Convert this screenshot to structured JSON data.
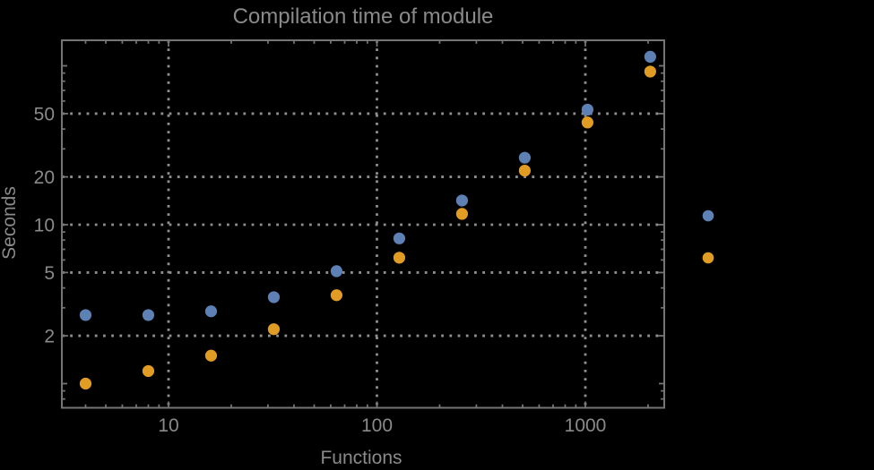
{
  "chart_data": {
    "type": "scatter",
    "title": "Compilation time of module",
    "xlabel": "Functions",
    "ylabel": "Seconds",
    "x_scale": "log",
    "y_scale": "log",
    "x_tick_labels": [
      "10",
      "100",
      "1000"
    ],
    "x_tick_values": [
      10,
      100,
      1000
    ],
    "y_tick_labels": [
      "2",
      "5",
      "10",
      "20",
      "50"
    ],
    "y_tick_values": [
      2,
      5,
      10,
      20,
      50
    ],
    "x_range": [
      3,
      2400
    ],
    "y_range": [
      0.7,
      146
    ],
    "grid": "dotted lines at labeled ticks only",
    "legend_position": "right-middle-markers-only",
    "x": [
      4,
      8,
      16,
      32,
      64,
      128,
      256,
      512,
      1024,
      2048
    ],
    "series": [
      {
        "name": "series-blue",
        "color": "#5E81B5",
        "label": "",
        "values": [
          2.7,
          2.7,
          2.85,
          3.5,
          5.1,
          8.2,
          14.2,
          26.4,
          53,
          114
        ]
      },
      {
        "name": "series-orange",
        "color": "#E19C24",
        "label": "",
        "values": [
          1.0,
          1.2,
          1.5,
          2.2,
          3.6,
          6.2,
          11.7,
          21.9,
          44,
          92
        ]
      }
    ]
  },
  "colors": {
    "background": "#000000",
    "frame": "#757575",
    "grid": "#8f8f8f",
    "text": "#8a8a8a",
    "series_blue": "#5E81B5",
    "series_orange": "#E19C24"
  }
}
